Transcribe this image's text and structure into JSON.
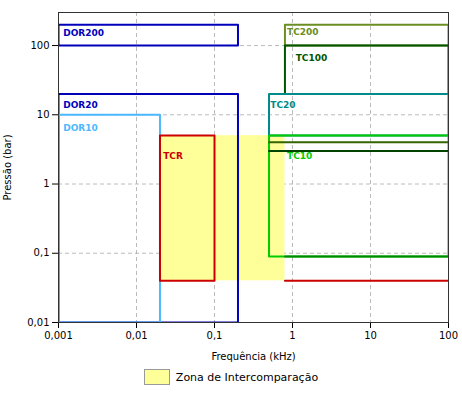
{
  "chart_data": {
    "type": "rectangles",
    "x_label": "Frequência (kHz)",
    "y_label": "Pressão (bar)",
    "log": true,
    "grid": true,
    "legend": "bottom",
    "xlim": [
      0.001,
      100
    ],
    "ylim": [
      0.01,
      300
    ],
    "xticks": [
      {
        "value": 0.001,
        "label": "0,001"
      },
      {
        "value": 0.01,
        "label": "0,01"
      },
      {
        "value": 0.1,
        "label": "0,1"
      },
      1,
      10,
      100
    ],
    "yticks": [
      {
        "value": 0.01,
        "label": "0,01"
      },
      {
        "value": 0.1,
        "label": "0,1"
      },
      1,
      10,
      100
    ],
    "zone": {
      "name": "Zona de Intercomparação",
      "color": "#ffff99",
      "x0": 0.02,
      "x1": 0.8,
      "y0": 0.04,
      "y1": 5
    },
    "series": [
      {
        "label": "DOR200",
        "color": "#0000bb",
        "x": [
          0.001,
          0.2,
          0.2,
          0.001,
          0.001
        ],
        "y": [
          100,
          100,
          200,
          200,
          100
        ],
        "label_x": 0.00115,
        "label_y": 150
      },
      {
        "label": "DOR20",
        "color": "#0000bb",
        "x": [
          0.001,
          0.2,
          0.2,
          0.001,
          0.001
        ],
        "y": [
          0.01,
          0.01,
          20,
          20,
          0.01
        ],
        "label_x": 0.00115,
        "label_y": 14
      },
      {
        "label": "DOR10",
        "color": "#4db8ff",
        "x": [
          0.001,
          0.02,
          0.02,
          0.001,
          0.001
        ],
        "y": [
          0.01,
          0.01,
          10,
          10,
          0.01
        ],
        "label_x": 0.00115,
        "label_y": 6.5
      },
      {
        "label": "TCR",
        "color": "#cc0000",
        "x": [
          0.02,
          0.1,
          0.1,
          0.02,
          0.02
        ],
        "y": [
          0.04,
          0.04,
          5,
          5,
          0.04
        ],
        "label_x": 0.022,
        "label_y": 2.5
      },
      {
        "label": "TC200",
        "color": "#6b8e23",
        "x": [
          0.8,
          100,
          100,
          0.8,
          0.8
        ],
        "y": [
          100,
          100,
          200,
          200,
          100
        ],
        "label_x": 0.85,
        "label_y": 155
      },
      {
        "label": "TC100",
        "color": "#005500",
        "x": [
          0.8,
          100,
          100,
          0.8,
          0.8
        ],
        "y": [
          20,
          20,
          100,
          100,
          20
        ],
        "label_x": 1.1,
        "label_y": 65
      },
      {
        "label": "TC20",
        "color": "#008b8b",
        "x": [
          0.5,
          100,
          100,
          0.5,
          0.5
        ],
        "y": [
          5,
          5,
          20,
          20,
          5
        ],
        "label_x": 0.52,
        "label_y": 14
      },
      {
        "label": "TC10",
        "color": "#00cc00",
        "x": [
          0.5,
          100,
          100,
          0.5,
          0.5
        ],
        "y": [
          0.09,
          0.09,
          5,
          5,
          0.09
        ],
        "label_x": 0.85,
        "label_y": 2.5
      },
      {
        "color": "#008800",
        "x": [
          0.8,
          100
        ],
        "y": [
          0.09,
          0.09
        ]
      },
      {
        "color": "#cc0000",
        "x": [
          0.8,
          100
        ],
        "y": [
          0.04,
          0.04
        ]
      },
      {
        "color": "#004400",
        "x": [
          0.5,
          100
        ],
        "y": [
          3.0,
          3.0
        ]
      },
      {
        "color": "#336600",
        "x": [
          0.5,
          100
        ],
        "y": [
          4.0,
          4.0
        ]
      }
    ]
  }
}
